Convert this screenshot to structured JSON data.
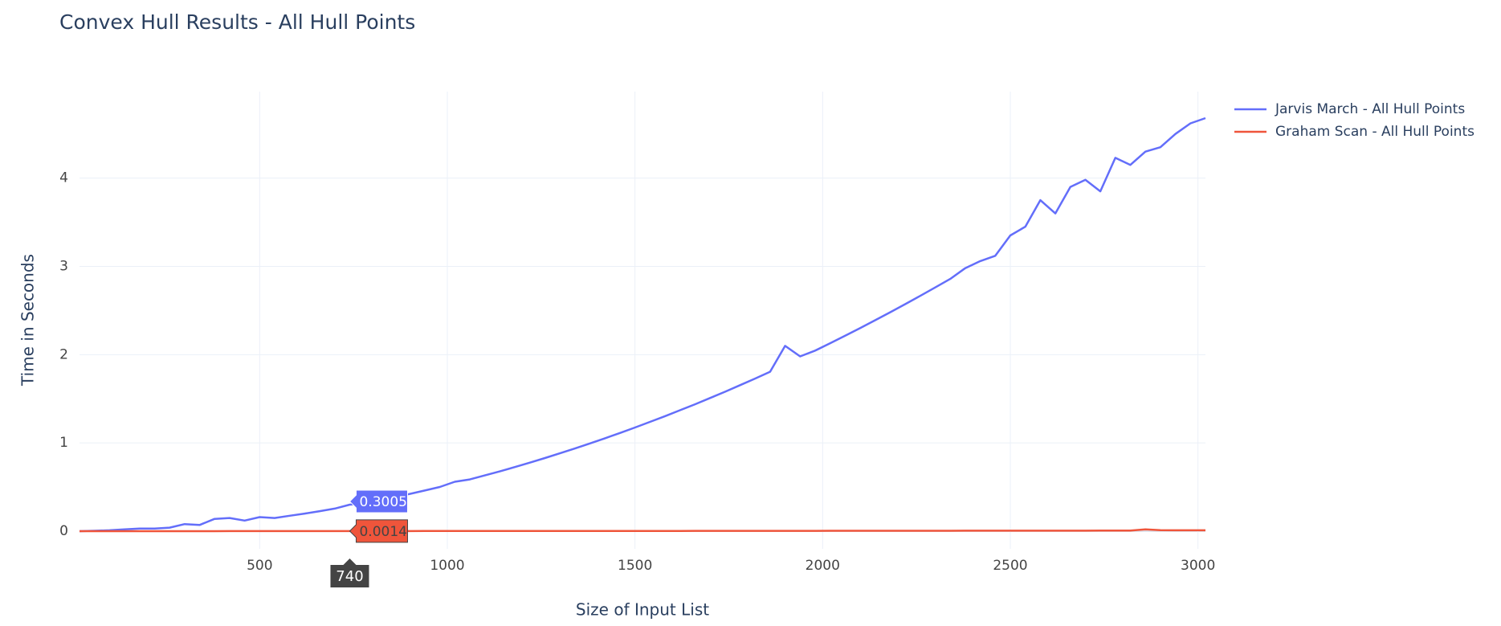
{
  "chart_data": {
    "type": "line",
    "title": "Convex Hull Results - All Hull Points",
    "x_label": "Size of Input List",
    "y_label": "Time in Seconds",
    "x": [
      20,
      60,
      100,
      140,
      180,
      220,
      260,
      300,
      340,
      380,
      420,
      460,
      500,
      540,
      580,
      620,
      660,
      700,
      740,
      780,
      820,
      860,
      900,
      940,
      980,
      1020,
      1060,
      1100,
      1140,
      1180,
      1220,
      1260,
      1300,
      1340,
      1380,
      1420,
      1460,
      1500,
      1540,
      1580,
      1620,
      1660,
      1700,
      1740,
      1780,
      1820,
      1860,
      1900,
      1940,
      1980,
      2020,
      2060,
      2100,
      2140,
      2180,
      2220,
      2260,
      2300,
      2340,
      2380,
      2420,
      2460,
      2500,
      2540,
      2580,
      2620,
      2660,
      2700,
      2740,
      2780,
      2820,
      2860,
      2900,
      2940,
      2980,
      3020
    ],
    "series": [
      {
        "name": "Jarvis March - All Hull Points",
        "color": "#636efa",
        "values": [
          0.0,
          0.005,
          0.01,
          0.02,
          0.03,
          0.03,
          0.04,
          0.08,
          0.07,
          0.14,
          0.15,
          0.12,
          0.16,
          0.15,
          0.175,
          0.2,
          0.227,
          0.256,
          0.3005,
          0.318,
          0.351,
          0.386,
          0.423,
          0.461,
          0.501,
          0.56,
          0.587,
          0.632,
          0.678,
          0.727,
          0.777,
          0.829,
          0.882,
          0.937,
          0.994,
          1.053,
          1.113,
          1.175,
          1.238,
          1.303,
          1.37,
          1.438,
          1.509,
          1.58,
          1.654,
          1.729,
          1.806,
          2.1,
          1.98,
          2.046,
          2.13,
          2.215,
          2.302,
          2.39,
          2.48,
          2.572,
          2.666,
          2.761,
          2.858,
          2.98,
          3.06,
          3.12,
          3.35,
          3.45,
          3.75,
          3.6,
          3.9,
          3.98,
          3.85,
          4.23,
          4.15,
          4.3,
          4.35,
          4.5,
          4.62,
          4.68
        ]
      },
      {
        "name": "Graham Scan - All Hull Points",
        "color": "#EF553B",
        "values": [
          0.0002,
          0.0003,
          0.0004,
          0.0004,
          0.0005,
          0.0005,
          0.0006,
          0.0006,
          0.0007,
          0.0007,
          0.0008,
          0.0008,
          0.0009,
          0.0009,
          0.001,
          0.001,
          0.0011,
          0.0012,
          0.0014,
          0.0013,
          0.0014,
          0.0015,
          0.0016,
          0.0017,
          0.0018,
          0.0019,
          0.002,
          0.0021,
          0.0022,
          0.0023,
          0.0024,
          0.0025,
          0.0026,
          0.0027,
          0.0028,
          0.0029,
          0.003,
          0.0031,
          0.0032,
          0.0033,
          0.0034,
          0.0035,
          0.0036,
          0.0037,
          0.0038,
          0.0039,
          0.004,
          0.0041,
          0.0042,
          0.0043,
          0.0044,
          0.0045,
          0.0046,
          0.0047,
          0.0048,
          0.0049,
          0.005,
          0.0051,
          0.0052,
          0.0053,
          0.0054,
          0.0055,
          0.0056,
          0.0057,
          0.0058,
          0.0059,
          0.006,
          0.0061,
          0.0062,
          0.0063,
          0.008,
          0.02,
          0.012,
          0.01,
          0.01,
          0.01
        ]
      }
    ],
    "xlim": [
      20,
      3020
    ],
    "ylim": [
      -0.2,
      4.98
    ],
    "xticks": [
      500,
      1000,
      1500,
      2000,
      2500,
      3000
    ],
    "yticks": [
      0,
      1,
      2,
      3,
      4
    ],
    "grid": true,
    "legend": "right"
  }
}
